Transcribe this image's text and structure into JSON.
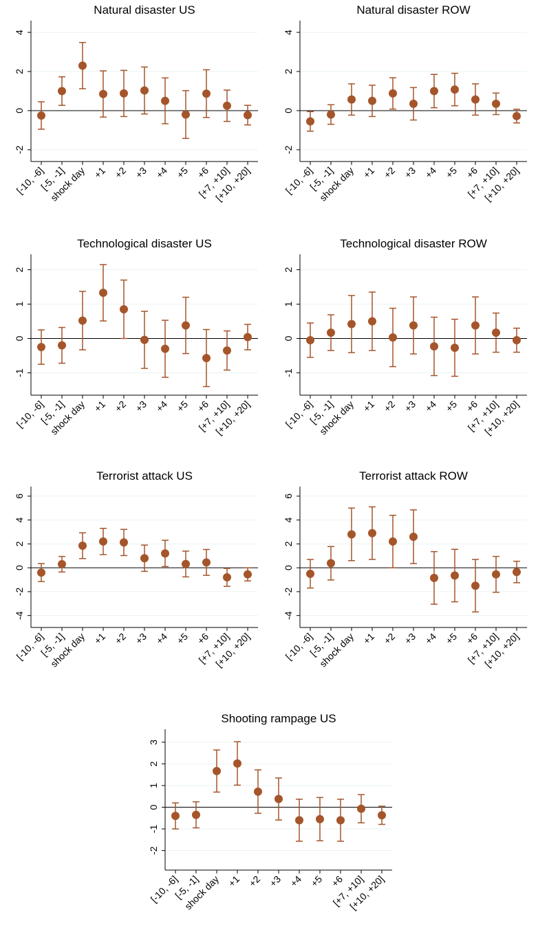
{
  "chart_data": [
    {
      "type": "errorbar",
      "title": "Natural disaster US",
      "color": "#a5552a",
      "grid": true,
      "refline": 0,
      "categories": [
        "[-10, -6]",
        "[-5, -1]",
        "shock day",
        "+1",
        "+2",
        "+3",
        "+4",
        "+5",
        "+6",
        "[+7, +10]",
        "[+10, +20]"
      ],
      "values": [
        -0.25,
        1.0,
        2.3,
        0.85,
        0.88,
        1.03,
        0.5,
        -0.2,
        0.87,
        0.25,
        -0.23
      ],
      "errors": [
        0.7,
        0.73,
        1.18,
        1.18,
        1.18,
        1.2,
        1.17,
        1.22,
        1.22,
        0.8,
        0.5
      ],
      "ylim": [
        -2.6,
        4.6
      ],
      "yticks": [
        -2,
        0,
        2,
        4
      ]
    },
    {
      "type": "errorbar",
      "title": "Natural disaster ROW",
      "color": "#a5552a",
      "grid": true,
      "refline": 0,
      "categories": [
        "[-10, -6]",
        "[-5, -1]",
        "shock day",
        "+1",
        "+2",
        "+3",
        "+4",
        "+5",
        "+6",
        "[+7, +10]",
        "[+10, +20]"
      ],
      "values": [
        -0.55,
        -0.2,
        0.57,
        0.5,
        0.88,
        0.35,
        1.0,
        1.08,
        0.57,
        0.35,
        -0.28
      ],
      "errors": [
        0.5,
        0.5,
        0.8,
        0.8,
        0.8,
        0.83,
        0.85,
        0.83,
        0.8,
        0.55,
        0.35
      ],
      "ylim": [
        -2.6,
        4.6
      ],
      "yticks": [
        -2,
        0,
        2,
        4
      ]
    },
    {
      "type": "errorbar",
      "title": "Technological disaster US",
      "color": "#a5552a",
      "grid": true,
      "refline": 0,
      "categories": [
        "[-10, -6]",
        "[-5, -1]",
        "shock day",
        "+1",
        "+2",
        "+3",
        "+4",
        "+5",
        "+6",
        "[+7, +10]",
        "[+10, +20]"
      ],
      "values": [
        -0.25,
        -0.2,
        0.52,
        1.33,
        0.85,
        -0.04,
        -0.3,
        0.38,
        -0.57,
        -0.35,
        0.04
      ],
      "errors": [
        0.5,
        0.52,
        0.85,
        0.82,
        0.85,
        0.83,
        0.83,
        0.82,
        0.83,
        0.57,
        0.37
      ],
      "ylim": [
        -1.65,
        2.45
      ],
      "yticks": [
        -1,
        0,
        1,
        2
      ]
    },
    {
      "type": "errorbar",
      "title": "Technological disaster ROW",
      "color": "#a5552a",
      "grid": true,
      "refline": 0,
      "categories": [
        "[-10, -6]",
        "[-5, -1]",
        "shock day",
        "+1",
        "+2",
        "+3",
        "+4",
        "+5",
        "+6",
        "[+7, +10]",
        "[+10, +20]"
      ],
      "values": [
        -0.05,
        0.17,
        0.42,
        0.5,
        0.03,
        0.38,
        -0.23,
        -0.27,
        0.38,
        0.17,
        -0.05
      ],
      "errors": [
        0.5,
        0.52,
        0.83,
        0.85,
        0.85,
        0.83,
        0.85,
        0.83,
        0.83,
        0.57,
        0.35
      ],
      "ylim": [
        -1.65,
        2.45
      ],
      "yticks": [
        -1,
        0,
        1,
        2
      ]
    },
    {
      "type": "errorbar",
      "title": "Terrorist attack US",
      "color": "#a5552a",
      "grid": true,
      "refline": 0,
      "categories": [
        "[-10, -6]",
        "[-5, -1]",
        "shock day",
        "+1",
        "+2",
        "+3",
        "+4",
        "+5",
        "+6",
        "[+7, +10]",
        "[+10, +20]"
      ],
      "values": [
        -0.4,
        0.3,
        1.85,
        2.2,
        2.12,
        0.8,
        1.2,
        0.32,
        0.45,
        -0.8,
        -0.55
      ],
      "errors": [
        0.75,
        0.65,
        1.08,
        1.1,
        1.1,
        1.1,
        1.1,
        1.08,
        1.08,
        0.75,
        0.55
      ],
      "ylim": [
        -5,
        6.8
      ],
      "yticks": [
        -4,
        -2,
        0,
        2,
        4,
        6
      ]
    },
    {
      "type": "errorbar",
      "title": "Terrorist attack ROW",
      "color": "#a5552a",
      "grid": true,
      "refline": 0,
      "categories": [
        "[-10, -6]",
        "[-5, -1]",
        "shock day",
        "+1",
        "+2",
        "+3",
        "+4",
        "+5",
        "+6",
        "[+7, +10]",
        "[+10, +20]"
      ],
      "values": [
        -0.5,
        0.38,
        2.8,
        2.9,
        2.2,
        2.6,
        -0.85,
        -0.65,
        -1.5,
        -0.55,
        -0.35
      ],
      "errors": [
        1.2,
        1.4,
        2.2,
        2.2,
        2.2,
        2.25,
        2.2,
        2.2,
        2.2,
        1.5,
        0.9
      ],
      "ylim": [
        -5,
        6.8
      ],
      "yticks": [
        -4,
        -2,
        0,
        2,
        4,
        6
      ]
    },
    {
      "type": "errorbar",
      "title": "Shooting rampage US",
      "color": "#a5552a",
      "grid": true,
      "refline": 0,
      "categories": [
        "[-10, -6]",
        "[-5, -1]",
        "shock day",
        "+1",
        "+2",
        "+3",
        "+4",
        "+5",
        "+6",
        "[+7, +10]",
        "[+10, +20]"
      ],
      "values": [
        -0.4,
        -0.35,
        1.67,
        2.02,
        0.72,
        0.38,
        -0.6,
        -0.55,
        -0.6,
        -0.07,
        -0.37
      ],
      "errors": [
        0.6,
        0.6,
        0.97,
        1.0,
        1.0,
        0.97,
        0.97,
        1.0,
        0.97,
        0.65,
        0.42
      ],
      "ylim": [
        -2.9,
        3.6
      ],
      "yticks": [
        -2,
        -1,
        0,
        1,
        2,
        3
      ]
    }
  ]
}
